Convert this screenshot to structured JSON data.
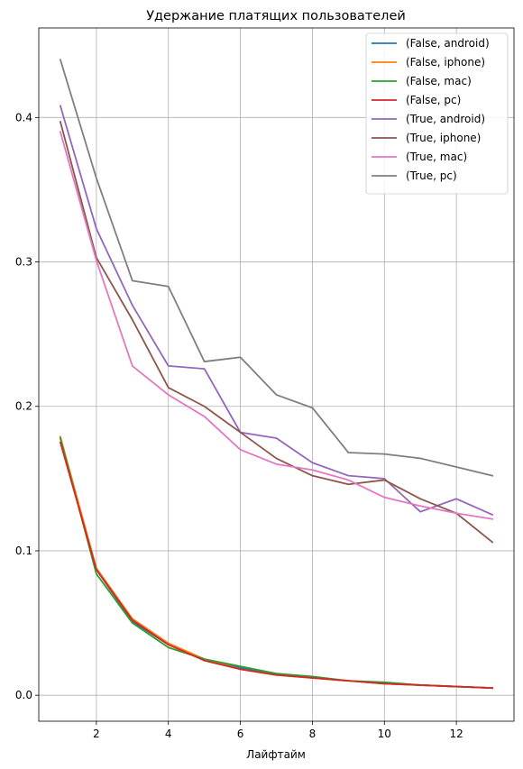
{
  "chart_data": {
    "type": "line",
    "title": "Удержание платящих пользователей",
    "xlabel": "Лайфтайм",
    "ylabel": "",
    "xlim": [
      0.4,
      13.6
    ],
    "ylim": [
      -0.018,
      0.462
    ],
    "x_ticks": [
      2,
      4,
      6,
      8,
      10,
      12
    ],
    "x_tick_labels": [
      "2",
      "4",
      "6",
      "8",
      "10",
      "12"
    ],
    "y_ticks": [
      0.0,
      0.1,
      0.2,
      0.3,
      0.4
    ],
    "y_tick_labels": [
      "0.0",
      "0.1",
      "0.2",
      "0.3",
      "0.4"
    ],
    "grid": true,
    "legend_position": "top-right",
    "x": [
      1,
      2,
      3,
      4,
      5,
      6,
      7,
      8,
      9,
      10,
      11,
      12,
      13
    ],
    "series": [
      {
        "name": "(False, android)",
        "color": "#1f77b4",
        "values": [
          0.178,
          0.087,
          0.051,
          0.035,
          0.025,
          0.019,
          0.015,
          0.012,
          0.01,
          0.008,
          0.007,
          0.006,
          0.005
        ]
      },
      {
        "name": "(False, iphone)",
        "color": "#ff7f0e",
        "values": [
          0.179,
          0.088,
          0.053,
          0.036,
          0.025,
          0.018,
          0.014,
          0.012,
          0.01,
          0.008,
          0.007,
          0.006,
          0.005
        ]
      },
      {
        "name": "(False, mac)",
        "color": "#2ca02c",
        "values": [
          0.178,
          0.084,
          0.05,
          0.033,
          0.025,
          0.02,
          0.015,
          0.013,
          0.01,
          0.009,
          0.007,
          0.006,
          0.005
        ]
      },
      {
        "name": "(False, pc)",
        "color": "#d62728",
        "values": [
          0.175,
          0.087,
          0.052,
          0.035,
          0.024,
          0.018,
          0.014,
          0.012,
          0.01,
          0.008,
          0.007,
          0.006,
          0.005
        ]
      },
      {
        "name": "(True, android)",
        "color": "#9467bd",
        "values": [
          0.408,
          0.323,
          0.27,
          0.228,
          0.226,
          0.182,
          0.178,
          0.161,
          0.152,
          0.15,
          0.127,
          0.136,
          0.125
        ]
      },
      {
        "name": "(True, iphone)",
        "color": "#8c564b",
        "values": [
          0.397,
          0.303,
          0.26,
          0.213,
          0.2,
          0.182,
          0.164,
          0.152,
          0.146,
          0.149,
          0.136,
          0.126,
          0.106
        ]
      },
      {
        "name": "(True, mac)",
        "color": "#e377c2",
        "values": [
          0.39,
          0.301,
          0.228,
          0.208,
          0.193,
          0.17,
          0.16,
          0.156,
          0.149,
          0.137,
          0.131,
          0.126,
          0.122
        ]
      },
      {
        "name": "(True, pc)",
        "color": "#7f7f7f",
        "values": [
          0.44,
          0.358,
          0.287,
          0.283,
          0.231,
          0.234,
          0.208,
          0.199,
          0.168,
          0.167,
          0.164,
          0.158,
          0.152
        ]
      }
    ]
  }
}
